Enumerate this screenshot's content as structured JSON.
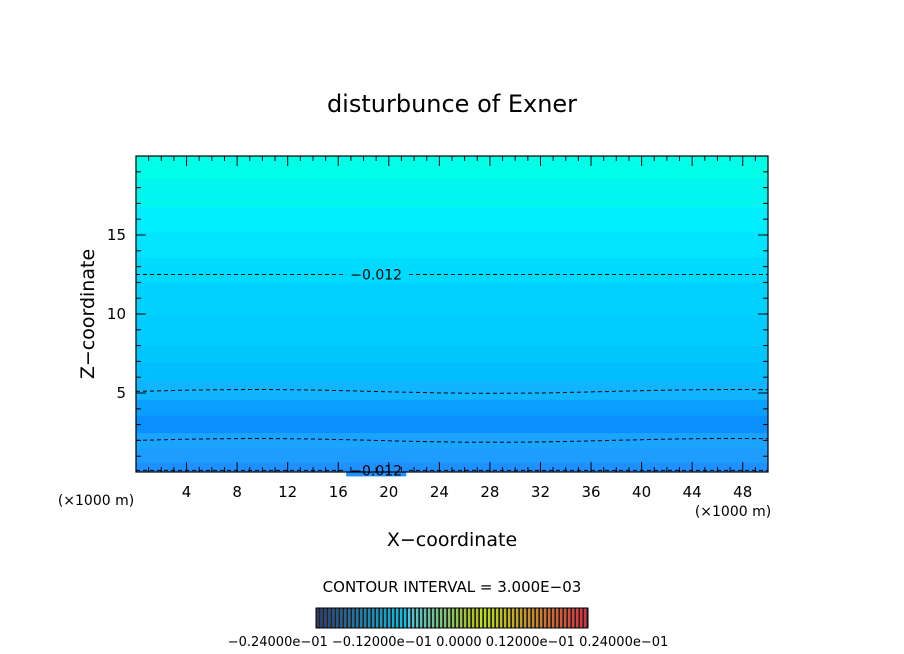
{
  "chart_data": {
    "type": "contour",
    "title": "disturbunce of Exner",
    "xlabel": "X−coordinate",
    "ylabel": "Z−coordinate",
    "x_unit_label": "(×1000 m)",
    "y_unit_label": "(×1000 m)",
    "xlim": [
      0,
      50
    ],
    "ylim": [
      0,
      20
    ],
    "x_ticks": [
      4,
      8,
      12,
      16,
      20,
      24,
      28,
      32,
      36,
      40,
      44,
      48
    ],
    "y_ticks": [
      5,
      10,
      15
    ],
    "contour_interval_text": "CONTOUR INTERVAL = 3.000E−03",
    "contour_labels": [
      {
        "text": "−0.012",
        "x": 19,
        "z": 12.5
      },
      {
        "text": "−0.012",
        "x": 19,
        "z": 0.1
      }
    ],
    "dashed_contour_levels_z": [
      12.5,
      5.1,
      2.0,
      0.1
    ],
    "fill_bands": [
      {
        "z_from": 0.0,
        "z_to": 0.6,
        "color": "#1e90ff"
      },
      {
        "z_from": 0.6,
        "z_to": 1.5,
        "color": "#1f9dff"
      },
      {
        "z_from": 1.5,
        "z_to": 2.5,
        "color": "#1aa3ff"
      },
      {
        "z_from": 2.5,
        "z_to": 3.6,
        "color": "#0a8fff"
      },
      {
        "z_from": 3.6,
        "z_to": 4.6,
        "color": "#0aa0ff"
      },
      {
        "z_from": 4.6,
        "z_to": 5.8,
        "color": "#10b4ff"
      },
      {
        "z_from": 5.8,
        "z_to": 7.0,
        "color": "#00bfff"
      },
      {
        "z_from": 7.0,
        "z_to": 8.0,
        "color": "#00c6ff"
      },
      {
        "z_from": 8.0,
        "z_to": 10.0,
        "color": "#00ccff"
      },
      {
        "z_from": 10.0,
        "z_to": 12.0,
        "color": "#00d2ff"
      },
      {
        "z_from": 12.0,
        "z_to": 13.6,
        "color": "#00daff"
      },
      {
        "z_from": 13.6,
        "z_to": 15.2,
        "color": "#00e4ff"
      },
      {
        "z_from": 15.2,
        "z_to": 16.8,
        "color": "#00eeff"
      },
      {
        "z_from": 16.8,
        "z_to": 18.6,
        "color": "#00f6ee"
      },
      {
        "z_from": 18.6,
        "z_to": 20.0,
        "color": "#00ffe6"
      }
    ],
    "colorbar_labels_text": "−0.24000e−01  −0.12000e−01  0.0000  0.12000e−01  0.24000e−01"
  }
}
